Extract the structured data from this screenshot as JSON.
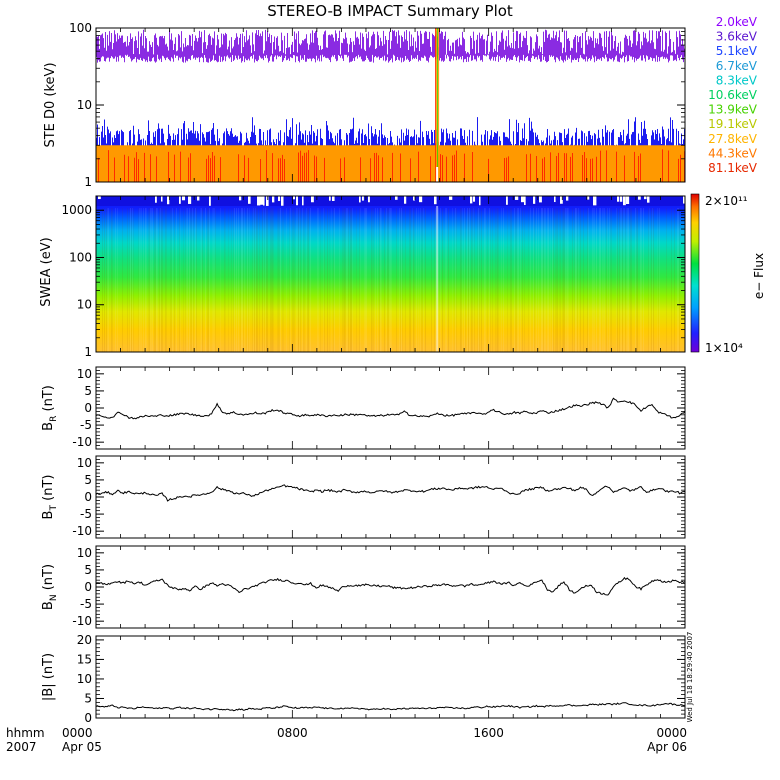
{
  "title": "STEREO-B IMPACT Summary Plot",
  "time_axis": {
    "row_label_top": "hhmm",
    "row_label_bottom": "2007",
    "ticks": [
      {
        "hour": 0,
        "top": "0000",
        "bottom": "Apr 05"
      },
      {
        "hour": 8,
        "top": "0800",
        "bottom": ""
      },
      {
        "hour": 16,
        "top": "1600",
        "bottom": ""
      },
      {
        "hour": 24,
        "top": "0000",
        "bottom": "Apr 06"
      }
    ],
    "range_hours": [
      0,
      24
    ]
  },
  "timestamp": "Wed Jul 18 18:29:40 2007",
  "colors": {
    "axis": "#000000",
    "ste_blue": "#1c1cf0",
    "ste_orange": "#ff9900",
    "ste_red": "#ff2a00",
    "ste_purple": "#8a2be2"
  },
  "chart_data": [
    {
      "id": "ste",
      "type": "line",
      "ylabel": "STE D0 (keV)",
      "yscale": "log",
      "ylim": [
        1,
        100
      ],
      "yticks": [
        "1",
        "10",
        "100"
      ],
      "legend_position": "right",
      "channels": [
        {
          "name": "2.0keV",
          "color": "#8f00ff"
        },
        {
          "name": "3.6keV",
          "color": "#5a14d0"
        },
        {
          "name": "5.1keV",
          "color": "#1e46ff"
        },
        {
          "name": "6.7keV",
          "color": "#1c9ad6"
        },
        {
          "name": "8.3keV",
          "color": "#00c8c8"
        },
        {
          "name": "10.6keV",
          "color": "#00d060"
        },
        {
          "name": "13.9keV",
          "color": "#46d200"
        },
        {
          "name": "19.1keV",
          "color": "#b8c800"
        },
        {
          "name": "27.8keV",
          "color": "#ffb400"
        },
        {
          "name": "44.3keV",
          "color": "#ff7800"
        },
        {
          "name": "81.1keV",
          "color": "#e62800"
        }
      ],
      "purple_band_range": [
        45,
        95
      ],
      "blue_band_range": [
        2.5,
        5
      ],
      "orange_band_range": [
        1,
        3
      ],
      "spike_hour": 13.9
    },
    {
      "id": "swea",
      "type": "heatmap",
      "ylabel": "SWEA (eV)",
      "yscale": "log",
      "ylim": [
        1,
        2000
      ],
      "yticks": [
        "1",
        "10",
        "100",
        "1000"
      ],
      "colorbar": {
        "label": "e− Flux",
        "max_label": "2×10¹¹",
        "min_label": "1×10⁴"
      }
    },
    {
      "id": "br",
      "type": "line",
      "ylabel": "BR (nT)",
      "ylabel_main": "B",
      "ylabel_sub": "R",
      "ylabel_unit": " (nT)",
      "ylim": [
        -12,
        12
      ],
      "yticks": [
        10,
        5,
        0,
        -5,
        -10
      ],
      "y": [
        -2,
        -2.2,
        -2.8,
        -2.6,
        -1.4,
        -1.8,
        -2.8,
        -3.0,
        -2.7,
        -2.3,
        -2.4,
        -2.4,
        -2.0,
        -2.3,
        -2.1,
        -1.8,
        -1.6,
        -1.8,
        -2.1,
        -2.2,
        -2.3,
        -1.8,
        1.3,
        -1.3,
        -1.6,
        -1.3,
        -1.8,
        -1.9,
        -1.8,
        -1.4,
        -1.7,
        -1.4,
        -0.6,
        -0.7,
        -1.3,
        -1.7,
        -2.0,
        -2.3,
        -2.1,
        -2.1,
        -2.0,
        -2.2,
        -2.3,
        -2.1,
        -2.2,
        -2.0,
        -1.9,
        -2.0,
        -1.8,
        -2.2,
        -2.4,
        -2.3,
        -2.2,
        -2.0,
        -2.0,
        -2.1,
        -0.6,
        -2.2,
        -2.3,
        -2.4,
        -2.5,
        -2.3,
        -1.5,
        -2.0,
        -2.3,
        -2.1,
        -1.7,
        -1.7,
        -1.6,
        -1.3,
        -1.9,
        -1.5,
        -0.4,
        -1.1,
        -1.6,
        -1.9,
        -1.3,
        -1.5,
        -1.0,
        -1.6,
        -1.4,
        -0.8,
        -1.4,
        -1.1,
        -0.7,
        -0.3,
        0.2,
        0.8,
        0.5,
        1.0,
        1.4,
        1.7,
        1.1,
        0.0,
        2.6,
        1.8,
        2.2,
        1.7,
        0.9,
        -0.9,
        0.4,
        0.9,
        -1.1,
        -1.7,
        -2.3,
        -3.0,
        -2.2,
        -1.0
      ]
    },
    {
      "id": "bt",
      "type": "line",
      "ylabel": "BT (nT)",
      "ylabel_main": "B",
      "ylabel_sub": "T",
      "ylabel_unit": " (nT)",
      "ylim": [
        -12,
        12
      ],
      "yticks": [
        10,
        5,
        0,
        -5,
        -10
      ],
      "y": [
        0.8,
        1.0,
        1.4,
        0.9,
        1.8,
        1.2,
        1.5,
        1.1,
        0.9,
        1.3,
        0.7,
        0.4,
        1.0,
        -0.9,
        -0.5,
        -0.1,
        0.3,
        0.1,
        0.5,
        0.7,
        0.9,
        1.5,
        2.8,
        2.2,
        1.9,
        1.3,
        0.9,
        1.1,
        0.3,
        0.6,
        1.3,
        1.9,
        2.4,
        2.7,
        3.4,
        3.0,
        2.8,
        2.3,
        2.0,
        1.4,
        2.1,
        1.6,
        2.0,
        1.8,
        1.5,
        2.0,
        1.7,
        1.4,
        1.5,
        1.7,
        1.3,
        1.5,
        1.9,
        1.5,
        1.3,
        1.7,
        2.0,
        1.9,
        1.8,
        1.6,
        1.8,
        2.3,
        2.4,
        2.6,
        2.2,
        2.1,
        2.7,
        2.4,
        2.5,
        2.8,
        2.9,
        3.0,
        2.1,
        2.7,
        2.3,
        1.3,
        0.7,
        1.2,
        2.0,
        2.3,
        2.6,
        2.8,
        1.8,
        2.2,
        2.3,
        2.7,
        2.5,
        1.9,
        2.7,
        2.3,
        0.4,
        1.4,
        2.8,
        3.0,
        1.6,
        2.0,
        2.6,
        1.9,
        2.2,
        2.9,
        1.6,
        1.8,
        2.6,
        2.2,
        1.5,
        1.7,
        1.2,
        1.4
      ]
    },
    {
      "id": "bn",
      "type": "line",
      "ylabel": "BN (nT)",
      "ylabel_main": "B",
      "ylabel_sub": "N",
      "ylabel_unit": " (nT)",
      "ylim": [
        -12,
        12
      ],
      "yticks": [
        10,
        5,
        0,
        -5,
        -10
      ],
      "y": [
        1.2,
        1.0,
        0.7,
        1.4,
        1.6,
        1.2,
        1.8,
        1.0,
        1.4,
        0.5,
        1.3,
        1.8,
        2.2,
        0.5,
        -0.3,
        -0.8,
        -0.4,
        -1.0,
        0.1,
        -0.6,
        0.3,
        1.2,
        0.4,
        0.9,
        0.5,
        -0.3,
        -1.6,
        -0.6,
        -0.3,
        0.4,
        1.0,
        1.6,
        2.0,
        2.2,
        1.9,
        1.8,
        1.0,
        1.3,
        0.6,
        1.0,
        -0.2,
        0.5,
        0.1,
        -0.4,
        -1.2,
        0.3,
        0.4,
        0.5,
        0.4,
        0.6,
        0.4,
        0.4,
        0.2,
        0.3,
        -0.2,
        -0.3,
        -0.4,
        -0.3,
        -0.1,
        0.1,
        0.2,
        0.4,
        0.5,
        0.7,
        0.6,
        0.3,
        0.6,
        0.2,
        0.9,
        0.5,
        0.8,
        1.1,
        1.6,
        1.3,
        0.9,
        1.2,
        0.4,
        1.3,
        0.3,
        0.6,
        1.6,
        2.0,
        -0.7,
        -1.4,
        0.3,
        1.5,
        -0.8,
        -1.9,
        -0.4,
        0.2,
        0.6,
        -1.6,
        -1.9,
        -2.2,
        0.1,
        1.3,
        2.6,
        2.1,
        0.2,
        -0.6,
        0.6,
        1.7,
        2.3,
        1.6,
        1.5,
        1.9,
        1.5,
        1.4
      ]
    },
    {
      "id": "bmag",
      "type": "line",
      "ylabel": "|B| (nT)",
      "ylabel_main": "|B| (nT)",
      "ylabel_sub": "",
      "ylabel_unit": "",
      "ylim": [
        0,
        21
      ],
      "yticks": [
        20,
        15,
        10,
        5,
        0
      ],
      "y": [
        3.1,
        2.9,
        2.9,
        3.2,
        2.7,
        2.7,
        2.5,
        2.4,
        2.8,
        2.7,
        2.6,
        2.4,
        2.6,
        2.6,
        2.4,
        2.7,
        2.6,
        2.4,
        2.6,
        2.2,
        2.4,
        2.2,
        2.4,
        2.2,
        2.3,
        1.9,
        2.3,
        2.1,
        2.4,
        2.3,
        2.3,
        2.6,
        2.5,
        2.7,
        3.0,
        2.8,
        2.6,
        2.5,
        2.7,
        2.5,
        2.8,
        2.6,
        2.5,
        2.4,
        2.5,
        2.4,
        2.4,
        2.6,
        2.4,
        2.3,
        2.1,
        2.3,
        2.4,
        2.3,
        2.1,
        2.4,
        2.4,
        2.4,
        2.5,
        2.5,
        2.4,
        2.5,
        2.6,
        2.7,
        2.6,
        2.5,
        2.6,
        2.4,
        2.6,
        2.8,
        2.7,
        3.0,
        2.8,
        2.9,
        3.1,
        3.1,
        2.9,
        2.7,
        2.8,
        2.9,
        3.1,
        2.9,
        3.0,
        3.2,
        3.1,
        3.3,
        3.3,
        3.1,
        3.3,
        3.2,
        3.5,
        3.4,
        3.5,
        3.6,
        3.5,
        3.7,
        3.8,
        3.6,
        3.4,
        3.2,
        3.3,
        3.1,
        3.4,
        3.6,
        3.7,
        3.5,
        3.3,
        3.3
      ]
    }
  ]
}
